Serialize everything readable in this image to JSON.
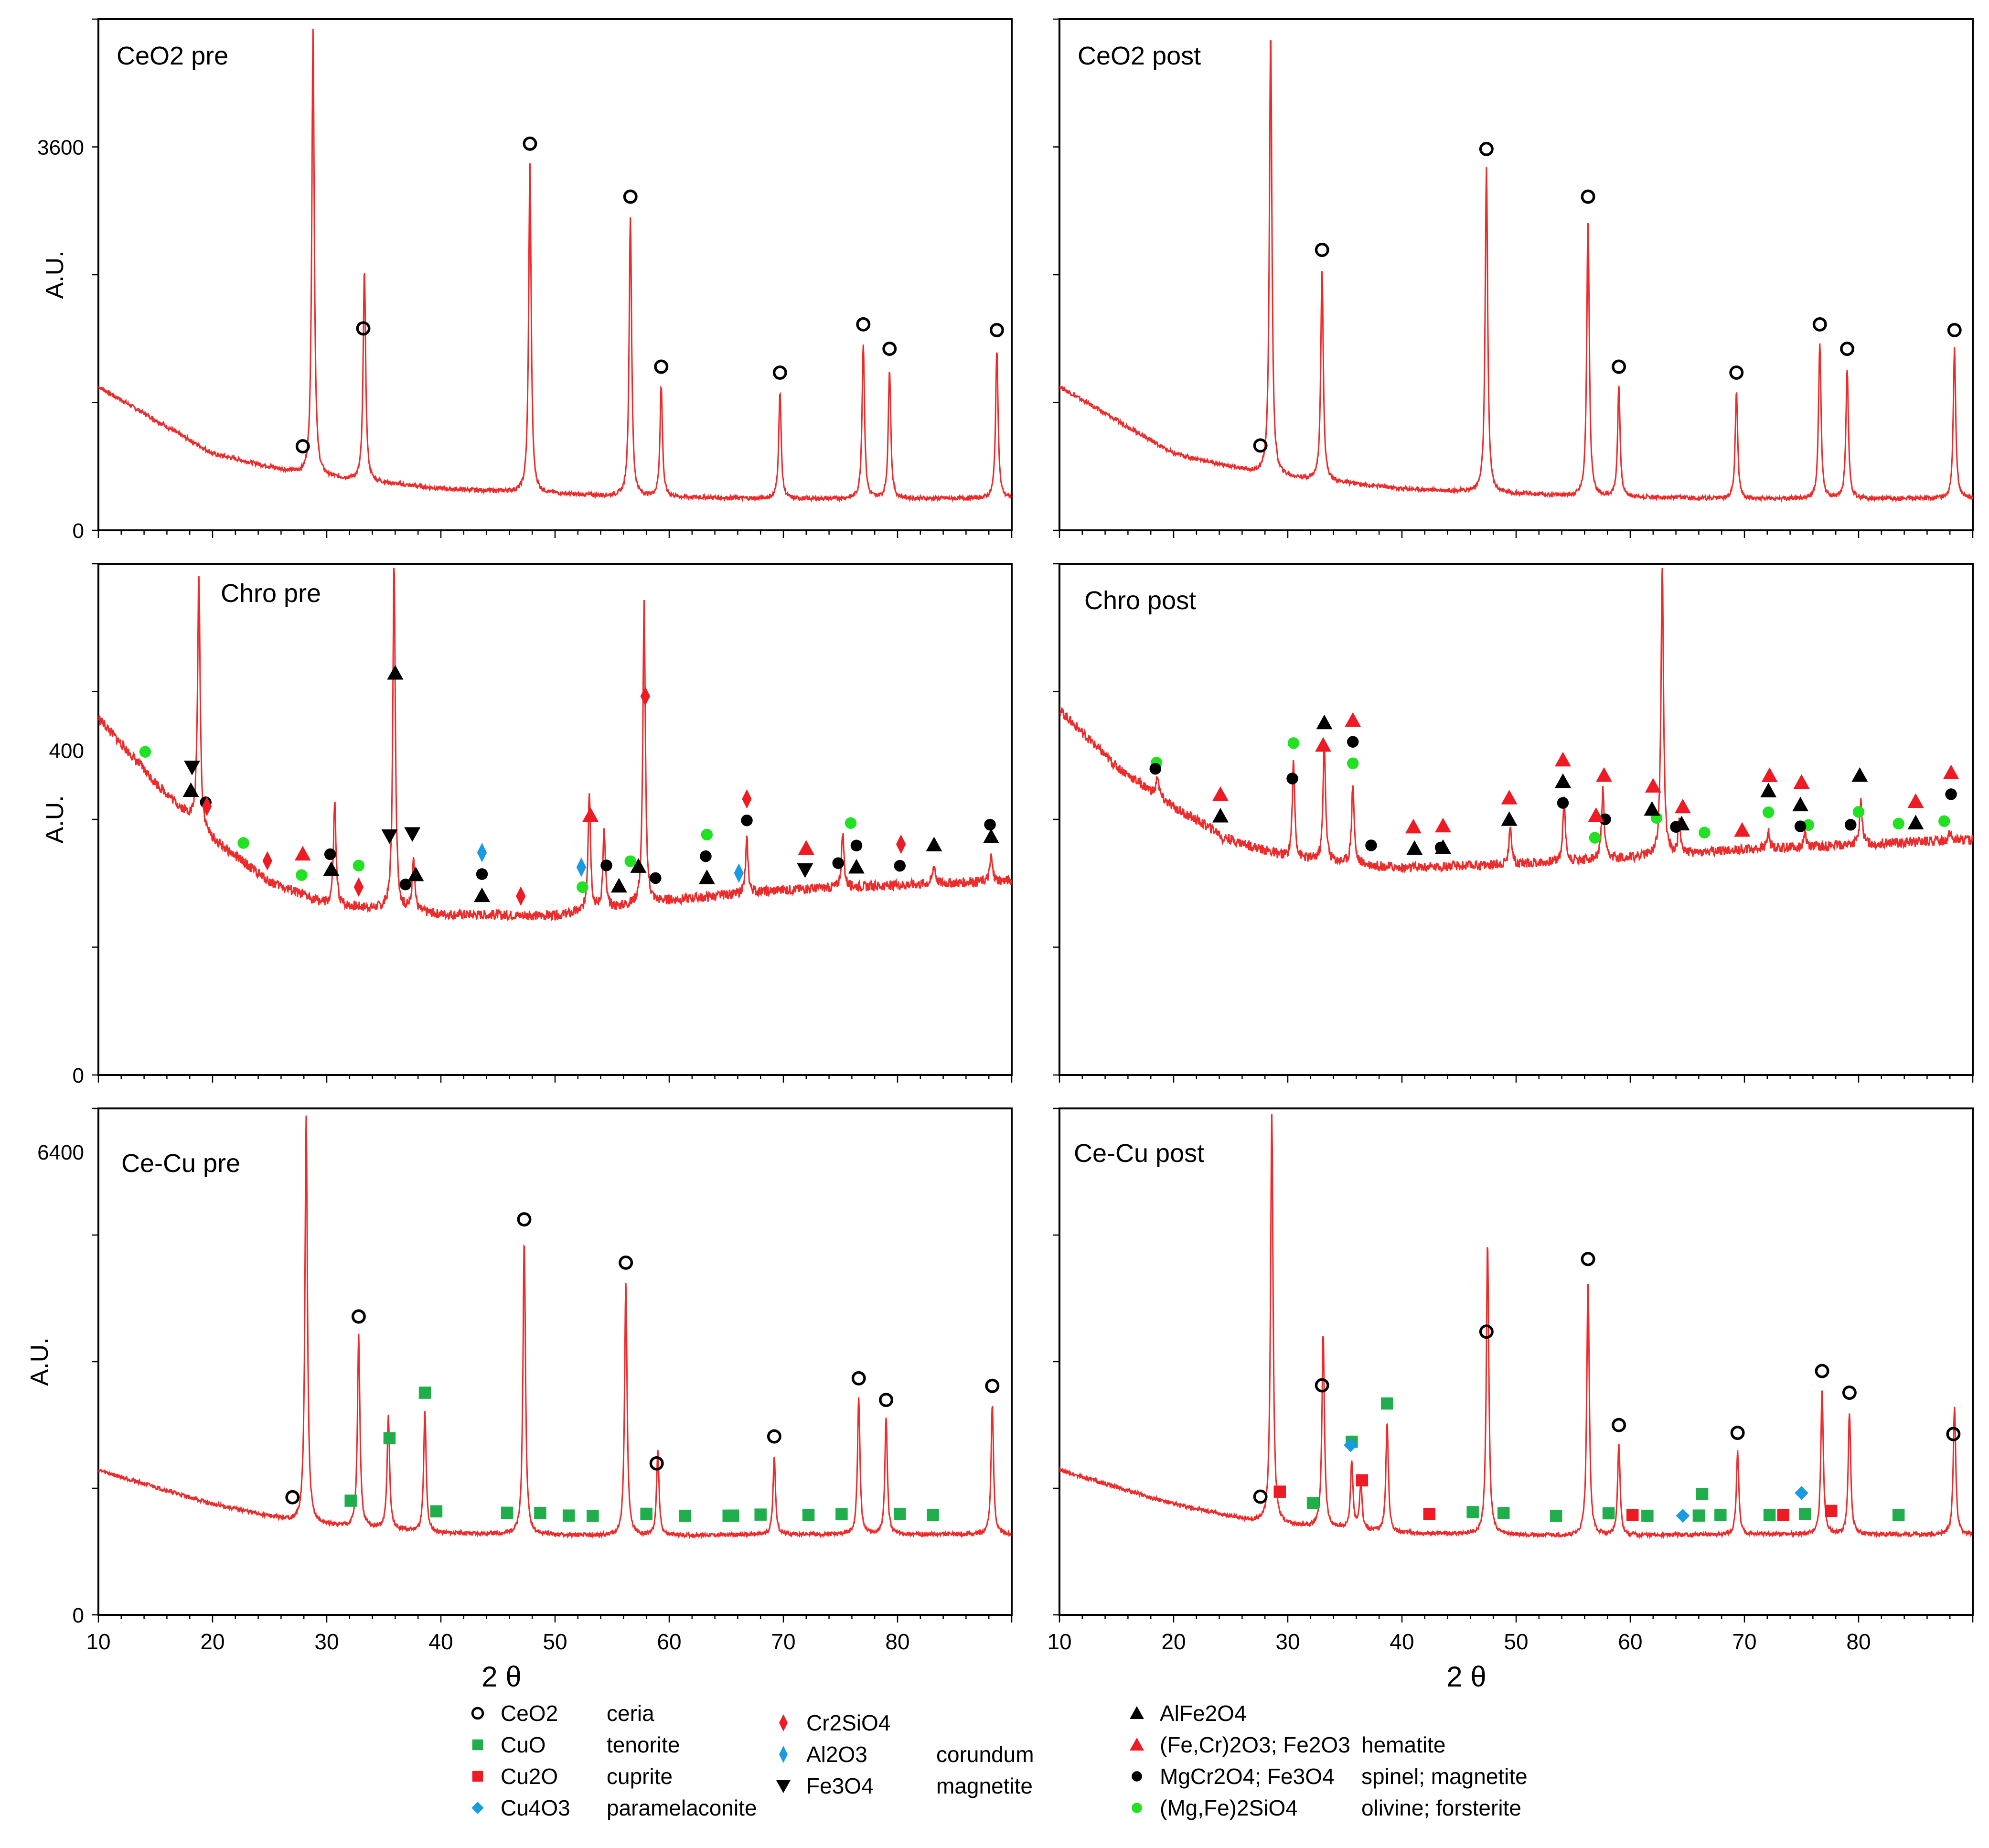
{
  "figure": {
    "x_axis_label": "2 θ",
    "y_axis_label": "A.U."
  },
  "colors": {
    "trace": "#ee2b2b",
    "ceria_marker": "#000000",
    "cuo_marker": "#1fae4b",
    "cu2o_marker": "#ee1b24",
    "cu4o3_marker": "#1a9ae0",
    "cr2sio4_marker": "#ee1b24",
    "al2o3_marker": "#1a9ae0",
    "fe3o4_marker": "#000000",
    "alfe2o4_marker": "#000000",
    "hematite_marker": "#ee1b24",
    "spinel_marker": "#000000",
    "olivine_marker": "#22e022"
  },
  "legend": [
    {
      "id": "ceria",
      "shape": "open-circle",
      "color": "#000000",
      "formula": "CeO2",
      "name": "ceria"
    },
    {
      "id": "tenorite",
      "shape": "square",
      "color": "#1fae4b",
      "formula": "CuO",
      "name": "tenorite"
    },
    {
      "id": "cuprite",
      "shape": "square",
      "color": "#ee1b24",
      "formula": "Cu2O",
      "name": "cuprite"
    },
    {
      "id": "paramelaconite",
      "shape": "diamond",
      "color": "#1a9ae0",
      "formula": "Cu4O3",
      "name": "paramelaconite"
    },
    {
      "id": "cr2sio4",
      "shape": "tall-diamond",
      "color": "#ee1b24",
      "formula": "Cr2SiO4",
      "name": ""
    },
    {
      "id": "corundum",
      "shape": "tall-diamond",
      "color": "#1a9ae0",
      "formula": "Al2O3",
      "name": "corundum"
    },
    {
      "id": "magnetite",
      "shape": "down-triangle",
      "color": "#000000",
      "formula": "Fe3O4",
      "name": "magnetite"
    },
    {
      "id": "alfe2o4",
      "shape": "triangle",
      "color": "#000000",
      "formula": "AlFe2O4",
      "name": ""
    },
    {
      "id": "hematite",
      "shape": "triangle",
      "color": "#ee1b24",
      "formula": "(Fe,Cr)2O3; Fe2O3",
      "name": "hematite"
    },
    {
      "id": "spinel",
      "shape": "circle",
      "color": "#000000",
      "formula": "MgCr2O4; Fe3O4",
      "name": "spinel; magnetite"
    },
    {
      "id": "olivine",
      "shape": "circle",
      "color": "#22e022",
      "formula": "(Mg,Fe)2SiO4",
      "name": "olivine; forsterite"
    }
  ],
  "chart_data": [
    {
      "type": "line",
      "title": "CeO2 pre",
      "xlabel": "",
      "ylabel": "A.U.",
      "xlim": [
        10,
        90
      ],
      "ylim": [
        0,
        4800
      ],
      "yticks": [
        0,
        3600
      ],
      "baseline": [
        [
          10,
          1350
        ],
        [
          20,
          720
        ],
        [
          28,
          520
        ],
        [
          40,
          390
        ],
        [
          55,
          320
        ],
        [
          70,
          295
        ],
        [
          90,
          300
        ]
      ],
      "peaks": [
        [
          28.8,
          4700
        ],
        [
          33.3,
          2450
        ],
        [
          47.8,
          3450
        ],
        [
          56.6,
          2950
        ],
        [
          59.3,
          1350
        ],
        [
          69.7,
          1300
        ],
        [
          77.0,
          1750
        ],
        [
          79.3,
          1520
        ],
        [
          88.7,
          1700
        ]
      ],
      "markers": [
        {
          "phase": "ceria",
          "x": [
            27.9,
            33.2,
            47.8,
            56.6,
            59.3,
            69.7,
            77.0,
            79.3,
            88.7
          ]
        }
      ]
    },
    {
      "type": "line",
      "title": "CeO2 post",
      "xlabel": "",
      "ylabel": "A.U.",
      "xlim": [
        10,
        90
      ],
      "ylim": [
        0,
        4800
      ],
      "yticks": [],
      "baseline": [
        [
          10,
          1350
        ],
        [
          20,
          720
        ],
        [
          28,
          520
        ],
        [
          40,
          390
        ],
        [
          55,
          320
        ],
        [
          70,
          295
        ],
        [
          90,
          300
        ]
      ],
      "peaks": [
        [
          28.5,
          4700
        ],
        [
          33.0,
          2450
        ],
        [
          47.4,
          3400
        ],
        [
          56.3,
          2950
        ],
        [
          59.0,
          1350
        ],
        [
          69.3,
          1300
        ],
        [
          76.6,
          1750
        ],
        [
          79.0,
          1520
        ],
        [
          88.4,
          1700
        ]
      ],
      "markers": [
        {
          "phase": "ceria",
          "x": [
            27.6,
            33.0,
            47.4,
            56.3,
            59.0,
            69.3,
            76.6,
            79.0,
            88.4
          ]
        }
      ]
    },
    {
      "type": "line",
      "title": "Chro pre",
      "xlabel": "",
      "ylabel": "A.U.",
      "xlim": [
        10,
        90
      ],
      "ylim": [
        0,
        630
      ],
      "yticks": [
        0,
        400
      ],
      "baseline": [
        [
          10,
          440
        ],
        [
          15,
          360
        ],
        [
          20,
          290
        ],
        [
          25,
          238
        ],
        [
          30,
          210
        ],
        [
          40,
          198
        ],
        [
          50,
          196
        ],
        [
          60,
          215
        ],
        [
          70,
          228
        ],
        [
          90,
          240
        ]
      ],
      "peaks": [
        [
          18.8,
          620
        ],
        [
          30.7,
          335
        ],
        [
          35.9,
          630
        ],
        [
          37.6,
          270
        ],
        [
          53.0,
          350
        ],
        [
          54.3,
          300
        ],
        [
          57.8,
          580
        ],
        [
          66.8,
          290
        ],
        [
          75.2,
          300
        ],
        [
          83.2,
          260
        ],
        [
          88.2,
          270
        ]
      ],
      "markers": [
        {
          "phase": "alfe2o4",
          "x": [
            18.1,
            30.4,
            36.0,
            37.8,
            43.6,
            55.6,
            57.3,
            63.3,
            76.4,
            83.2,
            88.2
          ]
        },
        {
          "phase": "magnetite",
          "x": [
            18.2,
            35.5,
            37.5,
            71.9
          ]
        },
        {
          "phase": "spinel",
          "x": [
            19.4,
            30.3,
            36.9,
            43.6,
            54.5,
            58.8,
            63.2,
            66.8,
            74.8,
            76.4,
            80.2,
            88.1
          ]
        },
        {
          "phase": "cr2sio4",
          "x": [
            19.5,
            24.8,
            32.8,
            47.0,
            57.9,
            66.8,
            80.3
          ]
        },
        {
          "phase": "olivine",
          "x": [
            14.1,
            22.7,
            27.8,
            32.8,
            52.4,
            56.6,
            63.3,
            75.9
          ]
        },
        {
          "phase": "hematite",
          "x": [
            27.9,
            53.1,
            72.0
          ]
        },
        {
          "phase": "corundum",
          "x": [
            43.6,
            52.3,
            66.1
          ]
        }
      ]
    },
    {
      "type": "line",
      "title": "Chro post",
      "xlabel": "",
      "ylabel": "",
      "xlim": [
        10,
        90
      ],
      "ylim": [
        0,
        630
      ],
      "yticks": [],
      "baseline": [
        [
          10,
          450
        ],
        [
          15,
          380
        ],
        [
          20,
          330
        ],
        [
          25,
          290
        ],
        [
          30,
          268
        ],
        [
          40,
          255
        ],
        [
          50,
          260
        ],
        [
          60,
          268
        ],
        [
          70,
          278
        ],
        [
          90,
          290
        ]
      ],
      "peaks": [
        [
          18.6,
          370
        ],
        [
          24.3,
          290
        ],
        [
          30.5,
          385
        ],
        [
          33.2,
          410
        ],
        [
          35.7,
          360
        ],
        [
          49.5,
          310
        ],
        [
          54.2,
          340
        ],
        [
          57.6,
          350
        ],
        [
          62.8,
          630
        ],
        [
          64.3,
          310
        ],
        [
          72.1,
          300
        ],
        [
          75.3,
          300
        ],
        [
          80.2,
          340
        ],
        [
          88.0,
          300
        ]
      ],
      "markers": [
        {
          "phase": "olivine",
          "x": [
            18.5,
            30.5,
            35.7,
            56.9,
            62.3,
            66.5,
            72.1,
            75.6,
            80.0,
            83.5,
            87.5
          ]
        },
        {
          "phase": "spinel",
          "x": [
            18.4,
            30.4,
            35.7,
            37.3,
            43.4,
            54.1,
            57.8,
            64.0,
            74.9,
            79.3,
            88.1
          ]
        },
        {
          "phase": "alfe2o4",
          "x": [
            24.1,
            33.2,
            41.1,
            43.6,
            49.4,
            54.1,
            61.9,
            64.5,
            72.1,
            74.9,
            80.1,
            85.0
          ]
        },
        {
          "phase": "hematite",
          "x": [
            24.1,
            33.1,
            35.7,
            41.0,
            43.6,
            49.4,
            54.1,
            57.0,
            57.7,
            62.0,
            64.6,
            69.8,
            72.2,
            75.0,
            85.0,
            88.1
          ]
        }
      ]
    },
    {
      "type": "line",
      "title": "Ce-Cu pre",
      "xlabel": "2 θ",
      "ylabel": "A.U.",
      "xlim": [
        10,
        90
      ],
      "ylim": [
        0,
        7000
      ],
      "yticks": [
        0,
        6400
      ],
      "xticks": [
        10,
        20,
        30,
        40,
        50,
        60,
        70,
        80
      ],
      "baseline": [
        [
          10,
          2000
        ],
        [
          20,
          1530
        ],
        [
          28,
          1260
        ],
        [
          40,
          1130
        ],
        [
          55,
          1090
        ],
        [
          70,
          1110
        ],
        [
          90,
          1110
        ]
      ],
      "peaks": [
        [
          28.2,
          6900
        ],
        [
          32.8,
          3850
        ],
        [
          35.4,
          2750
        ],
        [
          38.6,
          2800
        ],
        [
          47.3,
          5200
        ],
        [
          56.2,
          4600
        ],
        [
          59.0,
          2250
        ],
        [
          69.2,
          2200
        ],
        [
          76.6,
          3000
        ],
        [
          79.0,
          2700
        ],
        [
          88.3,
          2900
        ]
      ],
      "markers": [
        {
          "phase": "ceria",
          "x": [
            27.0,
            32.8,
            47.3,
            56.2,
            58.9,
            69.2,
            76.6,
            79.0,
            88.3
          ]
        },
        {
          "phase": "tenorite",
          "x": [
            32.1,
            35.5,
            38.6,
            39.6,
            45.8,
            48.7,
            51.2,
            53.3,
            58.0,
            61.4,
            65.2,
            65.6,
            68.0,
            72.2,
            75.1,
            80.2,
            83.1
          ]
        }
      ]
    },
    {
      "type": "line",
      "title": "Ce-Cu post",
      "xlabel": "2 θ",
      "ylabel": "",
      "xlim": [
        10,
        90
      ],
      "ylim": [
        0,
        7000
      ],
      "yticks": [],
      "xticks": [
        10,
        20,
        30,
        40,
        50,
        60,
        70,
        80
      ],
      "baseline": [
        [
          10,
          2000
        ],
        [
          20,
          1530
        ],
        [
          28,
          1260
        ],
        [
          40,
          1130
        ],
        [
          55,
          1090
        ],
        [
          70,
          1110
        ],
        [
          90,
          1110
        ]
      ],
      "peaks": [
        [
          28.6,
          6900
        ],
        [
          33.1,
          3900
        ],
        [
          35.6,
          2100
        ],
        [
          36.4,
          1800
        ],
        [
          38.7,
          2650
        ],
        [
          47.5,
          5150
        ],
        [
          56.3,
          4650
        ],
        [
          59.0,
          2350
        ],
        [
          69.4,
          2250
        ],
        [
          76.8,
          3100
        ],
        [
          79.2,
          2800
        ],
        [
          88.4,
          2900
        ]
      ],
      "markers": [
        {
          "phase": "ceria",
          "x": [
            27.6,
            33.0,
            47.4,
            56.3,
            59.0,
            69.4,
            76.8,
            79.2,
            88.3
          ]
        },
        {
          "phase": "tenorite",
          "x": [
            32.2,
            35.6,
            38.7,
            48.9,
            46.2,
            53.5,
            58.1,
            61.5,
            66.0,
            66.3,
            67.9,
            72.2,
            75.3,
            83.5
          ]
        },
        {
          "phase": "cuprite",
          "x": [
            29.3,
            36.5,
            42.4,
            60.2,
            73.4,
            77.6
          ]
        },
        {
          "phase": "paramelaconite",
          "x": [
            35.5,
            64.6,
            75.0
          ]
        }
      ]
    }
  ]
}
